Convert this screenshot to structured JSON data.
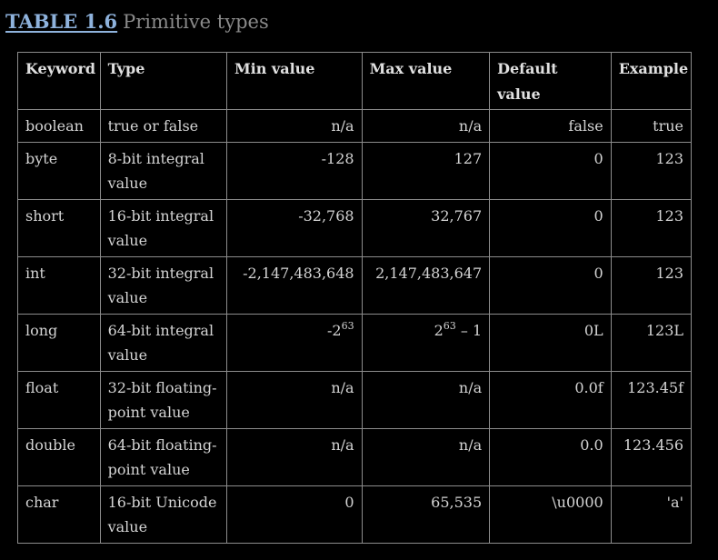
{
  "caption": {
    "label": "TABLE 1.6",
    "title": "Primitive types"
  },
  "headers": {
    "keyword": "Keyword",
    "type": "Type",
    "min": "Min value",
    "max": "Max value",
    "default": "Default value",
    "example": "Example"
  },
  "rows": [
    {
      "keyword": "boolean",
      "type": "true or false",
      "min": "n/a",
      "max": "n/a",
      "default": "false",
      "example": "true"
    },
    {
      "keyword": "byte",
      "type": "8-bit integral value",
      "min": "-128",
      "max": "127",
      "default": "0",
      "example": "123"
    },
    {
      "keyword": "short",
      "type": "16-bit integral value",
      "min": "-32,768",
      "max": "32,767",
      "default": "0",
      "example": "123"
    },
    {
      "keyword": "int",
      "type": "32-bit integral value",
      "min": "-2,147,483,648",
      "max": "2,147,483,647",
      "default": "0",
      "example": "123"
    },
    {
      "keyword": "long",
      "type": "64-bit integral value",
      "min_base": "-2",
      "min_exp": "63",
      "max_base": "2",
      "max_exp": "63",
      "max_suffix": " – 1",
      "default": "0L",
      "example": "123L"
    },
    {
      "keyword": "float",
      "type": "32-bit floating-point value",
      "min": "n/a",
      "max": "n/a",
      "default": "0.0f",
      "example": "123.45f"
    },
    {
      "keyword": "double",
      "type": "64-bit floating-point value",
      "min": "n/a",
      "max": "n/a",
      "default": "0.0",
      "example": "123.456"
    },
    {
      "keyword": "char",
      "type": "16-bit Unicode value",
      "min": "0",
      "max": "65,535",
      "default": "\\u0000",
      "example": "'a'"
    }
  ]
}
